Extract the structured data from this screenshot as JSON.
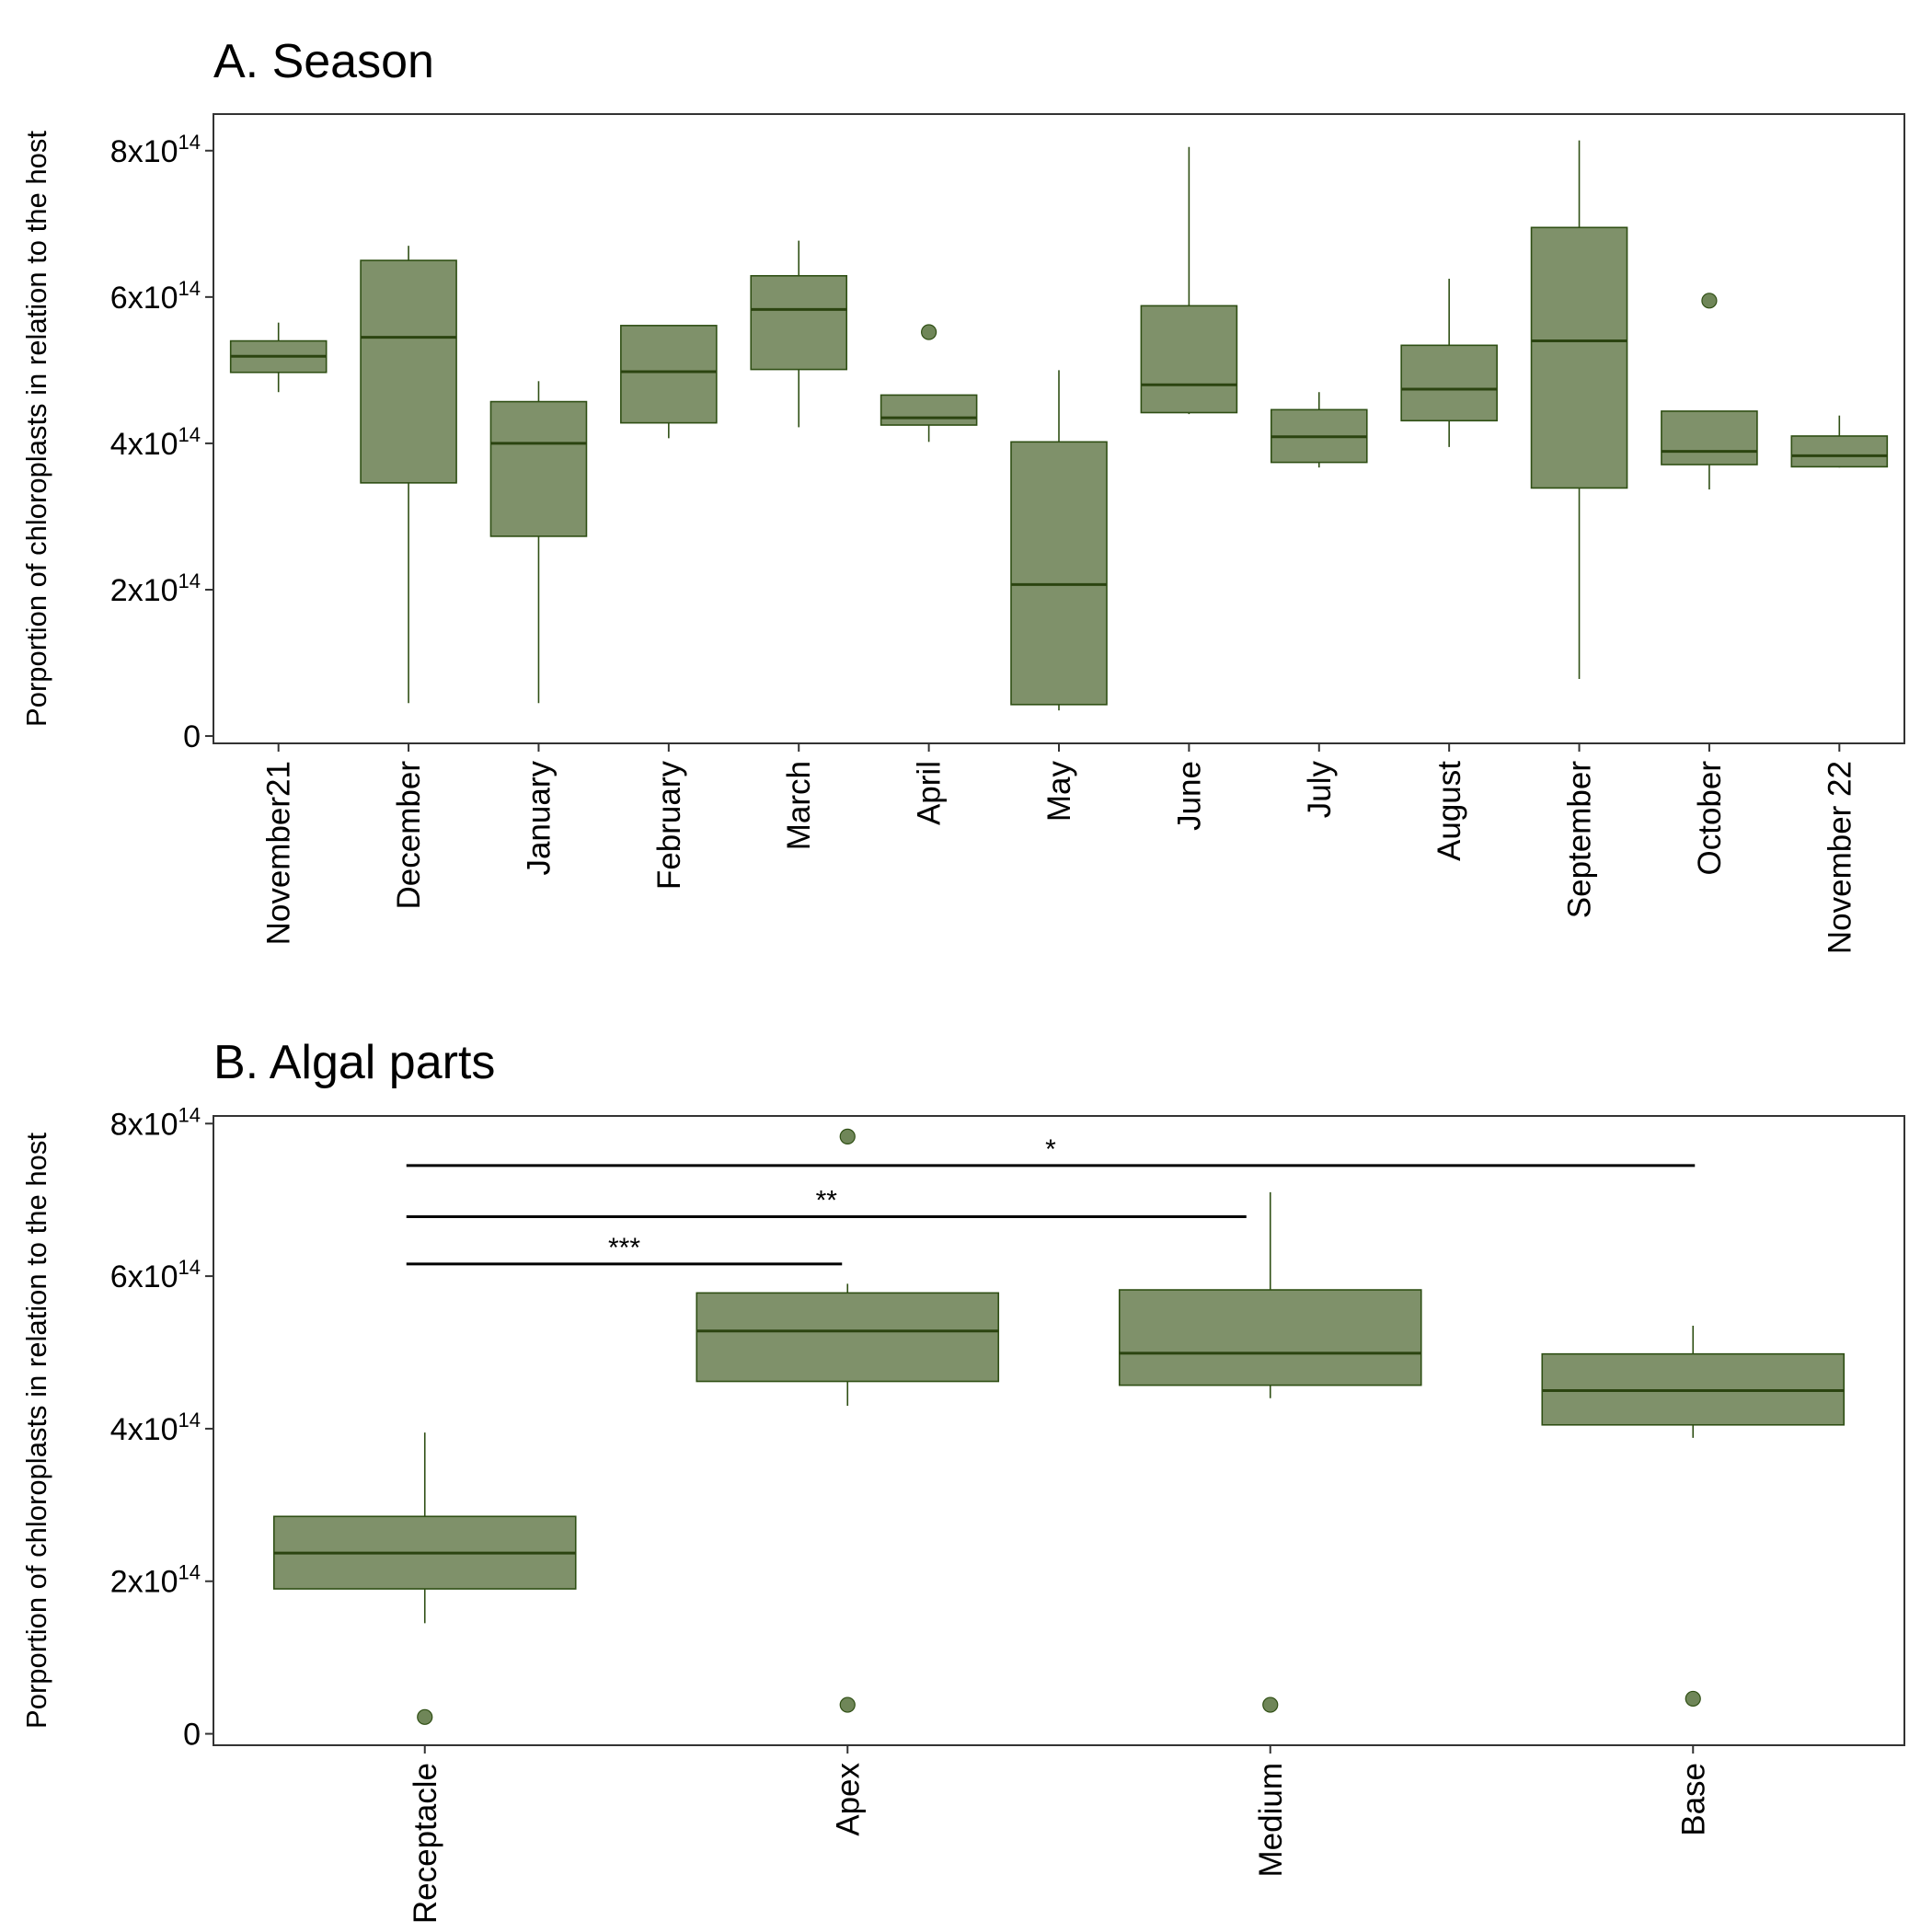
{
  "style": {
    "box_fill": "#7f916a",
    "box_stroke": "#2f4f14",
    "median_color": "#2b4410",
    "outlier_fill": "#6f8658",
    "frame_color": "#333333",
    "text_color": "#000000"
  },
  "chart_data": [
    {
      "type": "boxplot",
      "title": "A. Season",
      "xlabel": "",
      "ylabel": "Porportion of chloroplasts in relation to the host",
      "ylim": [
        -0.1,
        8.5
      ],
      "y_ticks": [
        {
          "value": 0,
          "base": "0",
          "exp": ""
        },
        {
          "value": 2,
          "base": "2x10",
          "exp": "14"
        },
        {
          "value": 4,
          "base": "4x10",
          "exp": "14"
        },
        {
          "value": 6,
          "base": "6x10",
          "exp": "14"
        },
        {
          "value": 8,
          "base": "8x10",
          "exp": "14"
        }
      ],
      "y_unit_multiplier": "1e14",
      "categories": [
        "November21",
        "December",
        "January",
        "February",
        "March",
        "April",
        "May",
        "June",
        "July",
        "August",
        "September",
        "October",
        "November 22"
      ],
      "boxes": [
        {
          "min": 4.7,
          "q1": 4.97,
          "median": 5.19,
          "q3": 5.4,
          "max": 5.65,
          "outliers": []
        },
        {
          "min": 0.45,
          "q1": 3.46,
          "median": 5.45,
          "q3": 6.5,
          "max": 6.7,
          "outliers": []
        },
        {
          "min": 0.45,
          "q1": 2.73,
          "median": 4.0,
          "q3": 4.57,
          "max": 4.85,
          "outliers": []
        },
        {
          "min": 4.07,
          "q1": 4.28,
          "median": 4.98,
          "q3": 5.61,
          "max": 5.61,
          "outliers": []
        },
        {
          "min": 4.22,
          "q1": 5.01,
          "median": 5.83,
          "q3": 6.29,
          "max": 6.77,
          "outliers": []
        },
        {
          "min": 4.02,
          "q1": 4.25,
          "median": 4.35,
          "q3": 4.66,
          "max": 4.66,
          "outliers": [
            5.52
          ]
        },
        {
          "min": 0.35,
          "q1": 0.43,
          "median": 2.07,
          "q3": 4.02,
          "max": 5.0,
          "outliers": []
        },
        {
          "min": 4.4,
          "q1": 4.42,
          "median": 4.8,
          "q3": 5.88,
          "max": 8.05,
          "outliers": []
        },
        {
          "min": 3.67,
          "q1": 3.74,
          "median": 4.09,
          "q3": 4.46,
          "max": 4.7,
          "outliers": []
        },
        {
          "min": 3.95,
          "q1": 4.31,
          "median": 4.74,
          "q3": 5.34,
          "max": 6.25,
          "outliers": []
        },
        {
          "min": 0.78,
          "q1": 3.39,
          "median": 5.4,
          "q3": 6.95,
          "max": 8.14,
          "outliers": []
        },
        {
          "min": 3.37,
          "q1": 3.71,
          "median": 3.89,
          "q3": 4.44,
          "max": 4.44,
          "outliers": [
            5.95
          ]
        },
        {
          "min": 3.67,
          "q1": 3.68,
          "median": 3.83,
          "q3": 4.1,
          "max": 4.38,
          "outliers": []
        }
      ],
      "significance": []
    },
    {
      "type": "boxplot",
      "title": "B. Algal parts",
      "xlabel": "",
      "ylabel": "Porportion of chloroplasts in relation to the host",
      "ylim": [
        -0.15,
        8.1
      ],
      "y_ticks": [
        {
          "value": 0,
          "base": "0",
          "exp": ""
        },
        {
          "value": 2,
          "base": "2x10",
          "exp": "14"
        },
        {
          "value": 4,
          "base": "4x10",
          "exp": "14"
        },
        {
          "value": 6,
          "base": "6x10",
          "exp": "14"
        },
        {
          "value": 8,
          "base": "8x10",
          "exp": "14"
        }
      ],
      "y_unit_multiplier": "1e14",
      "categories": [
        "Receptacle",
        "Apex",
        "Medium",
        "Base"
      ],
      "boxes": [
        {
          "min": 1.45,
          "q1": 1.9,
          "median": 2.37,
          "q3": 2.85,
          "max": 3.95,
          "outliers": [
            0.22
          ]
        },
        {
          "min": 4.3,
          "q1": 4.62,
          "median": 5.28,
          "q3": 5.78,
          "max": 5.9,
          "outliers": [
            7.83,
            0.38
          ]
        },
        {
          "min": 4.4,
          "q1": 4.57,
          "median": 4.99,
          "q3": 5.82,
          "max": 7.1,
          "outliers": [
            0.38
          ]
        },
        {
          "min": 3.88,
          "q1": 4.05,
          "median": 4.5,
          "q3": 4.98,
          "max": 5.35,
          "outliers": [
            0.46
          ]
        }
      ],
      "significance": [
        {
          "from": 0,
          "to": 1,
          "y": 6.16,
          "label": "***"
        },
        {
          "from": 0,
          "to": 2,
          "y": 6.78,
          "label": "**"
        },
        {
          "from": 0,
          "to": 3,
          "y": 7.45,
          "label": "*"
        }
      ]
    }
  ]
}
